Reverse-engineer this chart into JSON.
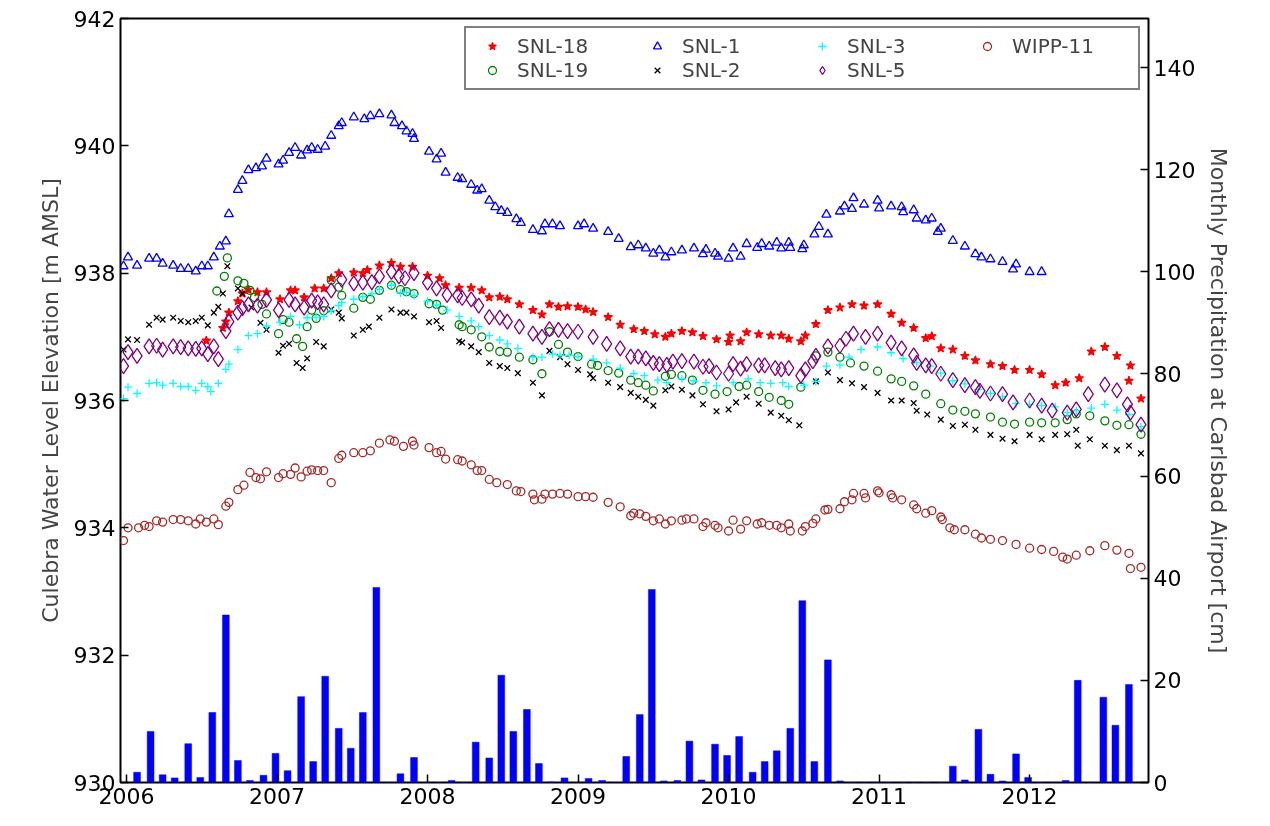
{
  "chart_data": {
    "type": "scatter",
    "xlabel": null,
    "ylabel": "Culebra Water Level Elevation [m AMSL]",
    "y2label": "Monthly Precipitation at Carlsbad Airport [cm]",
    "xlim": [
      2005.96,
      2012.79
    ],
    "xticks": [
      2006,
      2007,
      2008,
      2009,
      2010,
      2011,
      2012
    ],
    "ylim": [
      930,
      942
    ],
    "yticks": [
      930,
      932,
      934,
      936,
      938,
      940,
      942
    ],
    "y2lim": [
      0,
      149.6
    ],
    "y2ticks": [
      0,
      20,
      40,
      60,
      80,
      100,
      120,
      140
    ],
    "grid": false,
    "legend": "top right",
    "series": [
      {
        "name": "SNL-18",
        "marker": "star",
        "color": "#ff0000",
        "x": [
          2006.53,
          2006.64,
          2006.66,
          2006.68,
          2006.74,
          2006.77,
          2006.81,
          2006.87,
          2006.93,
          2007.02,
          2007.09,
          2007.12,
          2007.18,
          2007.25,
          2007.31,
          2007.36,
          2007.41,
          2007.51,
          2007.57,
          2007.6,
          2007.68,
          2007.76,
          2007.82,
          2007.9,
          2008.0,
          2008.08,
          2008.12,
          2008.21,
          2008.29,
          2008.36,
          2008.41,
          2008.48,
          2008.53,
          2008.61,
          2008.7,
          2008.76,
          2008.81,
          2008.87,
          2008.93,
          2009.0,
          2009.05,
          2009.1,
          2009.2,
          2009.28,
          2009.37,
          2009.44,
          2009.51,
          2009.58,
          2009.62,
          2009.69,
          2009.76,
          2009.83,
          2009.92,
          2010.0,
          2010.01,
          2010.08,
          2010.12,
          2010.2,
          2010.28,
          2010.35,
          2010.4,
          2010.48,
          2010.51,
          2010.58,
          2010.66,
          2010.74,
          2010.82,
          2010.9,
          2010.99,
          2011.08,
          2011.15,
          2011.23,
          2011.31,
          2011.35,
          2011.41,
          2011.49,
          2011.57,
          2011.64,
          2011.74,
          2011.82,
          2011.9,
          2012.0,
          2012.08,
          2012.17,
          2012.24,
          2012.33,
          2012.41,
          2012.5,
          2012.58,
          2012.66,
          2012.67,
          2012.74
        ],
        "values": [
          936.94,
          937.14,
          937.24,
          937.38,
          937.56,
          937.68,
          937.74,
          937.7,
          937.7,
          937.59,
          937.73,
          937.73,
          937.62,
          937.76,
          937.76,
          937.92,
          938.0,
          938.01,
          938.0,
          938.05,
          938.12,
          938.16,
          938.1,
          938.1,
          937.96,
          937.92,
          937.81,
          937.77,
          937.77,
          937.73,
          937.62,
          937.63,
          937.59,
          937.51,
          937.42,
          937.35,
          937.51,
          937.47,
          937.48,
          937.47,
          937.43,
          937.39,
          937.31,
          937.19,
          937.12,
          937.09,
          937.04,
          937.0,
          937.05,
          937.09,
          937.07,
          937.01,
          936.96,
          936.92,
          937.02,
          936.93,
          937.07,
          937.04,
          937.02,
          937.02,
          936.97,
          936.93,
          937.02,
          937.2,
          937.42,
          937.46,
          937.51,
          937.49,
          937.51,
          937.36,
          937.22,
          937.14,
          936.98,
          937.01,
          936.82,
          936.8,
          936.7,
          936.63,
          936.57,
          936.54,
          936.48,
          936.48,
          936.41,
          936.24,
          936.28,
          936.35,
          936.77,
          936.84,
          936.7,
          936.31,
          936.55,
          936.03
        ]
      },
      {
        "name": "SNL-19",
        "marker": "circle",
        "color": "#008000",
        "x": [
          2006.6,
          2006.65,
          2006.67,
          2006.74,
          2006.78,
          2006.82,
          2006.85,
          2006.9,
          2006.93,
          2007.01,
          2007.04,
          2007.08,
          2007.13,
          2007.17,
          2007.2,
          2007.23,
          2007.26,
          2007.31,
          2007.36,
          2007.41,
          2007.43,
          2007.51,
          2007.57,
          2007.62,
          2007.68,
          2007.76,
          2007.82,
          2007.86,
          2007.91,
          2008.01,
          2008.06,
          2008.1,
          2008.21,
          2008.23,
          2008.29,
          2008.36,
          2008.41,
          2008.48,
          2008.53,
          2008.61,
          2008.7,
          2008.76,
          2008.81,
          2008.87,
          2008.93,
          2009.0,
          2009.09,
          2009.13,
          2009.2,
          2009.27,
          2009.35,
          2009.4,
          2009.45,
          2009.5,
          2009.58,
          2009.62,
          2009.69,
          2009.76,
          2009.83,
          2009.91,
          2009.99,
          2010.07,
          2010.12,
          2010.2,
          2010.27,
          2010.35,
          2010.4,
          2010.48,
          2010.58,
          2010.66,
          2010.74,
          2010.81,
          2010.9,
          2010.99,
          2011.08,
          2011.15,
          2011.23,
          2011.31,
          2011.41,
          2011.49,
          2011.57,
          2011.64,
          2011.74,
          2011.82,
          2011.9,
          2012.0,
          2012.08,
          2012.17,
          2012.25,
          2012.31,
          2012.4,
          2012.5,
          2012.58,
          2012.66,
          2012.74
        ],
        "values": [
          937.72,
          937.95,
          938.24,
          937.88,
          937.84,
          937.73,
          937.62,
          937.51,
          937.36,
          937.05,
          937.27,
          937.23,
          936.97,
          936.85,
          937.16,
          937.42,
          937.29,
          937.41,
          937.89,
          937.78,
          937.65,
          937.45,
          937.62,
          937.59,
          937.73,
          937.81,
          937.74,
          937.71,
          937.68,
          937.52,
          937.51,
          937.42,
          937.19,
          937.16,
          937.11,
          937.0,
          936.84,
          936.77,
          936.76,
          936.68,
          936.64,
          936.42,
          937.08,
          936.88,
          936.76,
          936.69,
          936.57,
          936.55,
          936.47,
          936.43,
          936.32,
          936.28,
          936.24,
          936.15,
          936.38,
          936.41,
          936.39,
          936.32,
          936.16,
          936.1,
          936.14,
          936.22,
          936.24,
          936.14,
          936.05,
          936.0,
          935.94,
          936.21,
          936.7,
          936.76,
          936.68,
          936.59,
          936.54,
          936.46,
          936.34,
          936.3,
          936.23,
          936.1,
          935.95,
          935.85,
          935.83,
          935.79,
          935.74,
          935.66,
          935.63,
          935.66,
          935.65,
          935.65,
          935.7,
          935.79,
          935.76,
          935.68,
          935.61,
          935.62,
          935.47
        ]
      },
      {
        "name": "SNL-1",
        "marker": "triangle",
        "color": "#0000ff",
        "x": [
          2005.98,
          2006.01,
          2006.07,
          2006.15,
          2006.2,
          2006.24,
          2006.31,
          2006.36,
          2006.41,
          2006.46,
          2006.5,
          2006.54,
          2006.58,
          2006.62,
          2006.66,
          2006.68,
          2006.74,
          2006.77,
          2006.81,
          2006.86,
          2006.9,
          2006.93,
          2007.01,
          2007.04,
          2007.08,
          2007.12,
          2007.16,
          2007.2,
          2007.23,
          2007.27,
          2007.32,
          2007.36,
          2007.41,
          2007.43,
          2007.51,
          2007.58,
          2007.62,
          2007.68,
          2007.76,
          2007.78,
          2007.83,
          2007.86,
          2007.9,
          2007.91,
          2008.01,
          2008.06,
          2008.09,
          2008.12,
          2008.2,
          2008.23,
          2008.29,
          2008.33,
          2008.36,
          2008.41,
          2008.45,
          2008.49,
          2008.53,
          2008.59,
          2008.62,
          2008.7,
          2008.76,
          2008.78,
          2008.83,
          2008.88,
          2009.0,
          2009.04,
          2009.1,
          2009.2,
          2009.27,
          2009.35,
          2009.4,
          2009.45,
          2009.5,
          2009.54,
          2009.58,
          2009.62,
          2009.69,
          2009.77,
          2009.83,
          2009.85,
          2009.91,
          2009.93,
          2010.0,
          2010.03,
          2010.08,
          2010.12,
          2010.19,
          2010.22,
          2010.27,
          2010.32,
          2010.35,
          2010.4,
          2010.41,
          2010.49,
          2010.5,
          2010.57,
          2010.6,
          2010.65,
          2010.66,
          2010.74,
          2010.77,
          2010.82,
          2010.83,
          2010.9,
          2010.99,
          2011.0,
          2011.08,
          2011.15,
          2011.16,
          2011.23,
          2011.25,
          2011.31,
          2011.35,
          2011.39,
          2011.41,
          2011.49,
          2011.57,
          2011.64,
          2011.68,
          2011.74,
          2011.82,
          2011.89,
          2011.91,
          2012.0,
          2012.08
        ],
        "values": [
          938.11,
          938.25,
          938.12,
          938.23,
          938.23,
          938.15,
          938.12,
          938.07,
          938.07,
          938.03,
          938.11,
          938.11,
          938.25,
          938.42,
          938.5,
          938.93,
          939.31,
          939.45,
          939.62,
          939.65,
          939.68,
          939.8,
          939.71,
          939.77,
          939.89,
          939.97,
          939.85,
          939.93,
          939.97,
          939.94,
          939.99,
          940.16,
          940.31,
          940.36,
          940.45,
          940.42,
          940.47,
          940.5,
          940.48,
          940.36,
          940.31,
          940.23,
          940.19,
          940.11,
          939.91,
          939.79,
          939.88,
          939.58,
          939.5,
          939.48,
          939.39,
          939.3,
          939.32,
          939.14,
          939.04,
          938.98,
          938.95,
          938.85,
          938.79,
          938.68,
          938.66,
          938.77,
          938.77,
          938.74,
          938.74,
          938.77,
          938.7,
          938.65,
          938.54,
          938.41,
          938.44,
          938.39,
          938.31,
          938.36,
          938.25,
          938.33,
          938.36,
          938.39,
          938.3,
          938.37,
          938.31,
          938.26,
          938.23,
          938.39,
          938.26,
          938.46,
          938.4,
          938.46,
          938.42,
          938.48,
          938.39,
          938.48,
          938.4,
          938.38,
          938.44,
          938.61,
          938.73,
          938.92,
          938.61,
          938.97,
          939.05,
          939.01,
          939.18,
          939.08,
          939.14,
          939.02,
          939.05,
          939.04,
          938.96,
          938.99,
          938.86,
          938.83,
          938.86,
          938.65,
          938.7,
          938.51,
          938.42,
          938.3,
          938.25,
          938.22,
          938.18,
          938.06,
          938.14,
          938.02,
          938.02
        ]
      },
      {
        "name": "SNL-2",
        "marker": "x",
        "color": "#000000",
        "x": [
          2005.98,
          2006.01,
          2006.07,
          2006.15,
          2006.2,
          2006.24,
          2006.31,
          2006.36,
          2006.41,
          2006.46,
          2006.5,
          2006.54,
          2006.58,
          2006.61,
          2006.64,
          2006.67,
          2006.74,
          2006.77,
          2006.83,
          2006.89,
          2006.93,
          2007.01,
          2007.04,
          2007.08,
          2007.13,
          2007.17,
          2007.2,
          2007.26,
          2007.31,
          2007.36,
          2007.41,
          2007.43,
          2007.51,
          2007.57,
          2007.61,
          2007.68,
          2007.76,
          2007.82,
          2007.86,
          2007.91,
          2008.01,
          2008.06,
          2008.09,
          2008.21,
          2008.23,
          2008.29,
          2008.34,
          2008.41,
          2008.48,
          2008.53,
          2008.6,
          2008.7,
          2008.76,
          2008.81,
          2008.88,
          2008.93,
          2009.0,
          2009.08,
          2009.1,
          2009.2,
          2009.28,
          2009.35,
          2009.4,
          2009.45,
          2009.5,
          2009.58,
          2009.62,
          2009.69,
          2009.76,
          2009.83,
          2009.92,
          2010.0,
          2010.05,
          2010.12,
          2010.2,
          2010.28,
          2010.35,
          2010.4,
          2010.47,
          2010.58,
          2010.66,
          2010.74,
          2010.82,
          2010.9,
          2010.99,
          2011.08,
          2011.15,
          2011.23,
          2011.25,
          2011.32,
          2011.41,
          2011.49,
          2011.57,
          2011.64,
          2011.74,
          2011.82,
          2011.9,
          2012.0,
          2012.08,
          2012.17,
          2012.25,
          2012.31,
          2012.32,
          2012.4,
          2012.5,
          2012.58,
          2012.66,
          2012.74
        ],
        "values": [
          936.8,
          936.96,
          936.95,
          937.19,
          937.3,
          937.27,
          937.3,
          937.25,
          937.23,
          937.25,
          937.3,
          937.18,
          937.38,
          937.47,
          937.68,
          938.11,
          937.76,
          937.68,
          937.46,
          937.22,
          937.11,
          936.75,
          936.86,
          936.89,
          936.59,
          936.51,
          936.66,
          936.92,
          936.85,
          937.43,
          937.38,
          937.29,
          937.02,
          937.11,
          937.16,
          937.3,
          937.43,
          937.38,
          937.38,
          937.32,
          937.23,
          937.25,
          937.14,
          936.93,
          936.91,
          936.85,
          936.76,
          936.59,
          936.54,
          936.51,
          936.43,
          936.28,
          936.08,
          936.78,
          936.68,
          936.57,
          936.48,
          936.41,
          936.35,
          936.28,
          936.21,
          936.12,
          936.06,
          936.01,
          935.92,
          936.16,
          936.22,
          936.17,
          936.08,
          935.94,
          935.83,
          935.86,
          935.97,
          936.06,
          935.95,
          935.81,
          935.76,
          935.69,
          935.61,
          936.3,
          936.44,
          936.32,
          936.27,
          936.21,
          936.12,
          936.0,
          936.0,
          935.96,
          935.84,
          935.78,
          935.7,
          935.6,
          935.62,
          935.54,
          935.46,
          935.4,
          935.36,
          935.46,
          935.39,
          935.46,
          935.47,
          935.54,
          935.29,
          935.39,
          935.29,
          935.22,
          935.29,
          935.17
        ]
      },
      {
        "name": "SNL-3",
        "marker": "cross",
        "color": "#00ffff",
        "x": [
          2005.98,
          2006.01,
          2006.07,
          2006.15,
          2006.2,
          2006.24,
          2006.31,
          2006.36,
          2006.41,
          2006.46,
          2006.5,
          2006.54,
          2006.56,
          2006.61,
          2006.66,
          2006.68,
          2006.74,
          2006.81,
          2006.87,
          2006.93,
          2007.02,
          2007.09,
          2007.15,
          2007.2,
          2007.26,
          2007.31,
          2007.36,
          2007.41,
          2007.43,
          2007.51,
          2007.57,
          2007.63,
          2007.68,
          2007.76,
          2007.82,
          2007.86,
          2007.91,
          2008.0,
          2008.06,
          2008.13,
          2008.21,
          2008.29,
          2008.34,
          2008.41,
          2008.48,
          2008.53,
          2008.6,
          2008.7,
          2008.76,
          2008.83,
          2008.88,
          2008.94,
          2009.0,
          2009.1,
          2009.19,
          2009.28,
          2009.37,
          2009.44,
          2009.53,
          2009.59,
          2009.69,
          2009.77,
          2009.85,
          2009.92,
          2010.03,
          2010.13,
          2010.21,
          2010.28,
          2010.36,
          2010.4,
          2010.5,
          2010.58,
          2010.65,
          2010.74,
          2010.8,
          2010.88,
          2010.99,
          2011.08,
          2011.16,
          2011.25,
          2011.34,
          2011.41,
          2011.49,
          2011.57,
          2011.66,
          2011.74,
          2011.82,
          2011.91,
          2012.0,
          2012.08,
          2012.17,
          2012.25,
          2012.31,
          2012.41,
          2012.5,
          2012.58,
          2012.66,
          2012.74
        ],
        "values": [
          936.03,
          936.21,
          936.11,
          936.27,
          936.28,
          936.24,
          936.27,
          936.22,
          936.22,
          936.16,
          936.27,
          936.22,
          936.14,
          936.27,
          936.49,
          936.57,
          936.8,
          937.02,
          937.05,
          937.17,
          937.23,
          937.32,
          937.19,
          937.3,
          937.31,
          937.32,
          937.41,
          937.49,
          937.54,
          937.59,
          937.63,
          937.68,
          937.74,
          937.81,
          937.69,
          937.7,
          937.65,
          937.56,
          937.5,
          937.42,
          937.32,
          937.25,
          937.16,
          937.02,
          936.95,
          936.89,
          936.82,
          936.68,
          936.68,
          936.73,
          936.71,
          936.71,
          936.69,
          936.65,
          936.59,
          936.51,
          936.42,
          936.39,
          936.32,
          936.28,
          936.34,
          936.31,
          936.28,
          936.23,
          936.28,
          936.34,
          936.28,
          936.27,
          936.28,
          936.22,
          936.24,
          936.3,
          936.54,
          936.56,
          936.68,
          936.8,
          936.84,
          936.75,
          936.66,
          936.59,
          936.54,
          936.43,
          936.31,
          936.26,
          936.17,
          936.11,
          936.06,
          935.95,
          935.94,
          935.92,
          935.9,
          935.81,
          935.84,
          935.88,
          935.94,
          935.85,
          935.78,
          935.59
        ]
      },
      {
        "name": "SNL-5",
        "marker": "diamond",
        "color": "#800080",
        "x": [
          2005.98,
          2006.01,
          2006.07,
          2006.15,
          2006.2,
          2006.24,
          2006.31,
          2006.36,
          2006.41,
          2006.46,
          2006.5,
          2006.54,
          2006.58,
          2006.61,
          2006.66,
          2006.68,
          2006.74,
          2006.77,
          2006.81,
          2006.87,
          2006.93,
          2007.01,
          2007.08,
          2007.12,
          2007.18,
          2007.23,
          2007.27,
          2007.31,
          2007.36,
          2007.43,
          2007.51,
          2007.57,
          2007.63,
          2007.68,
          2007.76,
          2007.81,
          2007.85,
          2007.91,
          2008.0,
          2008.06,
          2008.13,
          2008.2,
          2008.23,
          2008.29,
          2008.34,
          2008.41,
          2008.48,
          2008.53,
          2008.61,
          2008.7,
          2008.76,
          2008.81,
          2008.87,
          2008.93,
          2009.0,
          2009.1,
          2009.19,
          2009.28,
          2009.35,
          2009.4,
          2009.45,
          2009.5,
          2009.54,
          2009.59,
          2009.63,
          2009.69,
          2009.77,
          2009.83,
          2009.87,
          2009.92,
          2010.0,
          2010.03,
          2010.08,
          2010.12,
          2010.2,
          2010.24,
          2010.31,
          2010.35,
          2010.4,
          2010.48,
          2010.51,
          2010.56,
          2010.58,
          2010.66,
          2010.74,
          2010.78,
          2010.83,
          2010.91,
          2010.99,
          2011.08,
          2011.15,
          2011.23,
          2011.25,
          2011.31,
          2011.35,
          2011.41,
          2011.49,
          2011.57,
          2011.64,
          2011.67,
          2011.74,
          2011.82,
          2011.89,
          2012.0,
          2012.08,
          2012.15,
          2012.25,
          2012.31,
          2012.39,
          2012.5,
          2012.58,
          2012.65,
          2012.67,
          2012.74
        ],
        "values": [
          936.54,
          936.76,
          936.7,
          936.85,
          936.86,
          936.8,
          936.85,
          936.84,
          936.82,
          936.81,
          936.82,
          936.73,
          936.85,
          936.65,
          937.09,
          937.24,
          937.38,
          937.45,
          937.51,
          937.49,
          937.58,
          937.42,
          937.58,
          937.51,
          937.46,
          937.57,
          937.54,
          937.51,
          937.73,
          937.9,
          937.84,
          937.85,
          937.86,
          937.95,
          938.02,
          937.95,
          937.92,
          938.0,
          937.85,
          937.76,
          937.66,
          937.65,
          937.61,
          937.59,
          937.49,
          937.31,
          937.3,
          937.24,
          937.16,
          937.05,
          937.0,
          937.12,
          937.11,
          937.09,
          937.08,
          937.0,
          936.89,
          936.82,
          936.69,
          936.69,
          936.66,
          936.59,
          936.57,
          936.56,
          936.61,
          936.62,
          936.61,
          936.53,
          936.54,
          936.44,
          936.42,
          936.57,
          936.5,
          936.57,
          936.55,
          936.55,
          936.51,
          936.49,
          936.51,
          936.39,
          936.49,
          936.62,
          936.7,
          936.85,
          936.86,
          936.97,
          937.05,
          937.0,
          937.05,
          936.91,
          936.82,
          936.71,
          936.59,
          936.55,
          936.54,
          936.42,
          936.32,
          936.24,
          936.21,
          936.15,
          936.11,
          936.1,
          935.97,
          936.0,
          935.92,
          935.84,
          935.81,
          935.86,
          936.1,
          936.25,
          936.16,
          935.94,
          935.81,
          935.62
        ]
      },
      {
        "name": "WIPP-11",
        "marker": "circle",
        "color": "#a52a2a",
        "x": [
          2005.98,
          2006.01,
          2006.08,
          2006.12,
          2006.15,
          2006.2,
          2006.24,
          2006.31,
          2006.36,
          2006.41,
          2006.46,
          2006.49,
          2006.53,
          2006.58,
          2006.61,
          2006.66,
          2006.68,
          2006.74,
          2006.78,
          2006.82,
          2006.86,
          2006.89,
          2006.93,
          2007.01,
          2007.04,
          2007.09,
          2007.12,
          2007.16,
          2007.2,
          2007.23,
          2007.27,
          2007.31,
          2007.36,
          2007.41,
          2007.43,
          2007.51,
          2007.57,
          2007.62,
          2007.68,
          2007.75,
          2007.78,
          2007.84,
          2007.9,
          2007.91,
          2008.01,
          2008.06,
          2008.09,
          2008.12,
          2008.2,
          2008.23,
          2008.29,
          2008.33,
          2008.36,
          2008.41,
          2008.46,
          2008.53,
          2008.59,
          2008.62,
          2008.7,
          2008.71,
          2008.76,
          2008.78,
          2008.83,
          2008.88,
          2008.93,
          2009.0,
          2009.05,
          2009.1,
          2009.2,
          2009.28,
          2009.35,
          2009.37,
          2009.41,
          2009.45,
          2009.5,
          2009.54,
          2009.58,
          2009.62,
          2009.69,
          2009.72,
          2009.77,
          2009.83,
          2009.85,
          2009.91,
          2009.93,
          2010.0,
          2010.03,
          2010.08,
          2010.12,
          2010.19,
          2010.22,
          2010.27,
          2010.32,
          2010.35,
          2010.4,
          2010.41,
          2010.49,
          2010.51,
          2010.56,
          2010.58,
          2010.64,
          2010.66,
          2010.74,
          2010.77,
          2010.82,
          2010.83,
          2010.9,
          2010.91,
          2010.99,
          2011.0,
          2011.08,
          2011.09,
          2011.15,
          2011.23,
          2011.25,
          2011.31,
          2011.35,
          2011.41,
          2011.42,
          2011.47,
          2011.5,
          2011.57,
          2011.64,
          2011.68,
          2011.74,
          2011.82,
          2011.91,
          2012.0,
          2012.08,
          2012.16,
          2012.22,
          2012.25,
          2012.31,
          2012.4,
          2012.5,
          2012.58,
          2012.66,
          2012.67,
          2012.74
        ],
        "values": [
          933.8,
          934.0,
          934.0,
          934.04,
          934.02,
          934.11,
          934.09,
          934.13,
          934.13,
          934.11,
          934.06,
          934.14,
          934.09,
          934.14,
          934.05,
          934.34,
          934.4,
          934.6,
          934.67,
          934.87,
          934.79,
          934.77,
          934.88,
          934.79,
          934.85,
          934.84,
          934.94,
          934.8,
          934.89,
          934.91,
          934.9,
          934.9,
          934.71,
          935.09,
          935.14,
          935.18,
          935.18,
          935.21,
          935.33,
          935.38,
          935.36,
          935.28,
          935.36,
          935.3,
          935.26,
          935.18,
          935.2,
          935.08,
          935.07,
          935.05,
          934.99,
          934.9,
          934.9,
          934.76,
          934.71,
          934.68,
          934.58,
          934.57,
          934.53,
          934.44,
          934.45,
          934.53,
          934.53,
          934.54,
          934.53,
          934.49,
          934.49,
          934.48,
          934.4,
          934.33,
          934.19,
          934.23,
          934.22,
          934.18,
          934.11,
          934.14,
          934.06,
          934.11,
          934.12,
          934.14,
          934.14,
          934.02,
          934.08,
          934.04,
          934.0,
          933.95,
          934.12,
          933.98,
          934.11,
          934.06,
          934.08,
          934.04,
          934.04,
          934.0,
          934.06,
          933.95,
          933.95,
          934.02,
          934.07,
          934.14,
          934.28,
          934.29,
          934.3,
          934.41,
          934.44,
          934.54,
          934.54,
          934.47,
          934.58,
          934.55,
          934.52,
          934.47,
          934.44,
          934.36,
          934.3,
          934.23,
          934.27,
          934.17,
          934.13,
          934.0,
          933.97,
          933.97,
          933.9,
          933.84,
          933.82,
          933.8,
          933.74,
          933.68,
          933.66,
          933.63,
          933.54,
          933.51,
          933.57,
          933.64,
          933.72,
          933.65,
          933.6,
          933.36,
          933.38
        ]
      },
      {
        "type": "bar",
        "axis": "y2",
        "color": "#0000ff",
        "x": [
          2006.07,
          2006.16,
          2006.24,
          2006.32,
          2006.41,
          2006.49,
          2006.57,
          2006.66,
          2006.74,
          2006.82,
          2006.91,
          2006.99,
          2007.07,
          2007.16,
          2007.24,
          2007.32,
          2007.41,
          2007.49,
          2007.57,
          2007.66,
          2007.74,
          2007.82,
          2007.91,
          2007.99,
          2008.07,
          2008.16,
          2008.24,
          2008.32,
          2008.41,
          2008.49,
          2008.57,
          2008.66,
          2008.74,
          2008.82,
          2008.91,
          2008.99,
          2009.07,
          2009.16,
          2009.24,
          2009.32,
          2009.41,
          2009.49,
          2009.57,
          2009.66,
          2009.74,
          2009.82,
          2009.91,
          2009.99,
          2010.07,
          2010.16,
          2010.24,
          2010.32,
          2010.41,
          2010.49,
          2010.57,
          2010.66,
          2010.74,
          2010.82,
          2010.91,
          2010.99,
          2011.07,
          2011.16,
          2011.24,
          2011.32,
          2011.41,
          2011.49,
          2011.57,
          2011.66,
          2011.74,
          2011.82,
          2011.91,
          2011.99,
          2012.07,
          2012.16,
          2012.24,
          2012.32,
          2012.41,
          2012.49,
          2012.57,
          2012.66
        ],
        "values": [
          2,
          10,
          1.5,
          0.9,
          7.6,
          1,
          13.7,
          32.8,
          4.3,
          0.4,
          1.4,
          5.7,
          2.3,
          16.8,
          4.1,
          20.8,
          10.6,
          6.7,
          13.7,
          38.2,
          0,
          1.7,
          4.9,
          0,
          0,
          0.4,
          0,
          7.9,
          4.8,
          21,
          10,
          14.3,
          3.7,
          0.1,
          0.9,
          0,
          0.8,
          0.4,
          0,
          5.1,
          13.3,
          37.8,
          0.3,
          0.4,
          8.1,
          0.5,
          7.5,
          5.3,
          9,
          2,
          4.1,
          6.2,
          10.6,
          35.6,
          4.1,
          24,
          0.3,
          0,
          0,
          0,
          0,
          0,
          0,
          0,
          0,
          3.2,
          0.5,
          10.4,
          1.6,
          0.3,
          5.6,
          1,
          0,
          0,
          0.4,
          20,
          0,
          16.7,
          11.2,
          19.2
        ]
      }
    ]
  }
}
